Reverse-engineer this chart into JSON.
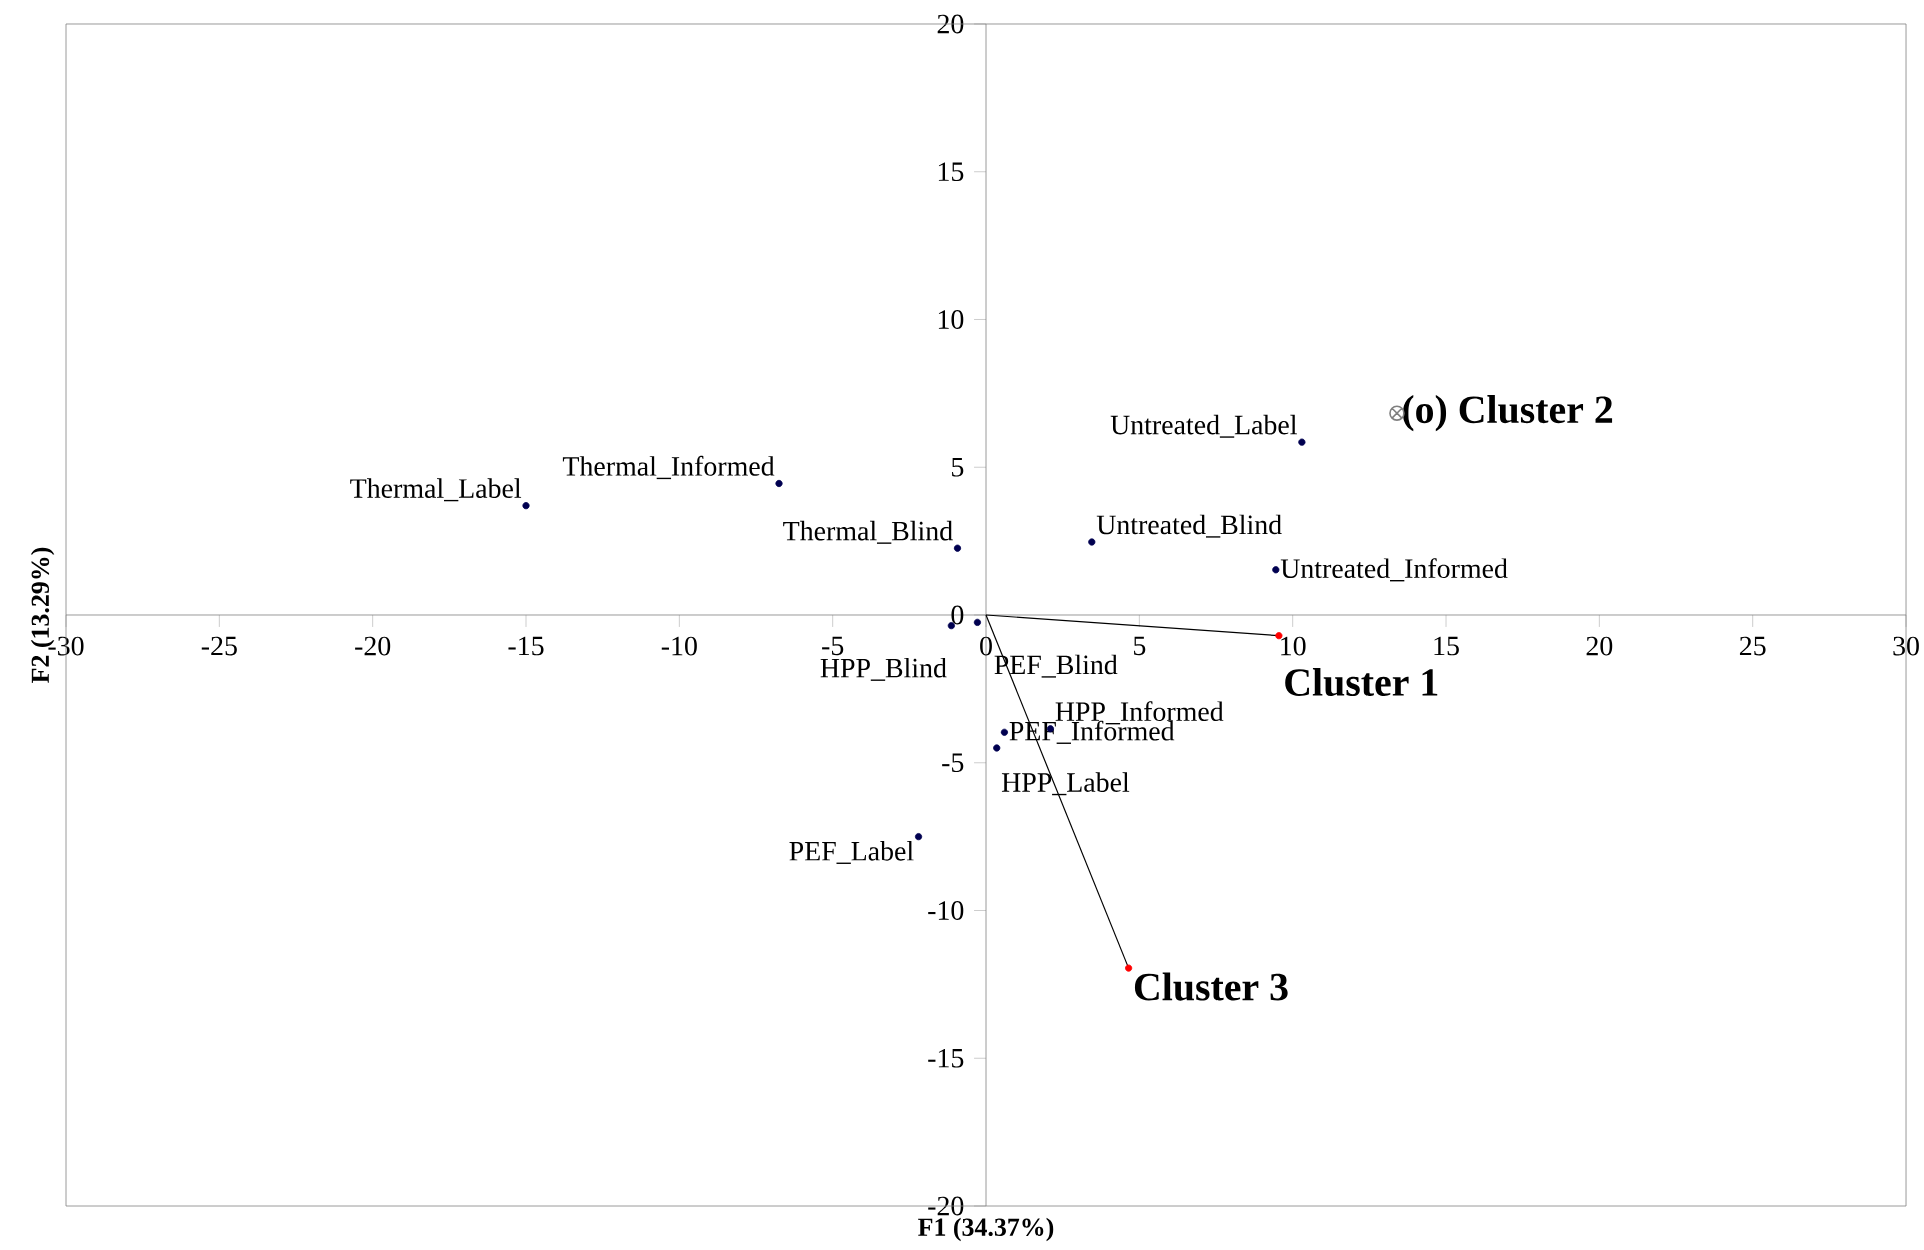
{
  "chart_data": {
    "type": "scatter",
    "xlabel": "F1 (34.37%)",
    "ylabel": "F2 (13.29%)",
    "xlim": [
      -30,
      30
    ],
    "ylim": [
      -20,
      20
    ],
    "xticks": [
      -30,
      -25,
      -20,
      -15,
      -10,
      -5,
      0,
      5,
      10,
      15,
      20,
      25,
      30
    ],
    "yticks": [
      -20,
      -15,
      -10,
      -5,
      0,
      5,
      10,
      15,
      20
    ],
    "grid": false,
    "series": [
      {
        "type": "scatter",
        "color": "#000050",
        "marker": "circle",
        "x": [
          -15.0,
          -6.75,
          -0.93,
          3.45,
          10.3,
          9.45,
          -1.13,
          -0.28,
          2.1,
          0.6,
          0.35,
          -2.2
        ],
        "values": [
          3.7,
          4.45,
          2.26,
          2.47,
          5.85,
          1.53,
          -0.36,
          -0.25,
          -3.85,
          -3.97,
          -4.5,
          -7.5
        ]
      },
      {
        "type": "line",
        "color": "#000000",
        "marker": "none",
        "x": [
          0,
          9.55
        ],
        "values": [
          0,
          -0.7
        ]
      },
      {
        "type": "line",
        "color": "#000000",
        "marker": "none",
        "x": [
          0,
          4.65
        ],
        "values": [
          0,
          -11.95
        ]
      },
      {
        "type": "scatter",
        "color": "#ff0000",
        "marker": "circle",
        "x": [
          9.55,
          4.65
        ],
        "values": [
          -0.7,
          -11.95
        ]
      },
      {
        "type": "scatter",
        "color": "#808080",
        "marker": "cross",
        "x": [
          13.4
        ],
        "values": [
          6.83
        ]
      }
    ],
    "annotations": [
      {
        "text": "Thermal_Label",
        "x": -15.0,
        "y": 3.7
      },
      {
        "text": "Thermal_Informed",
        "x": -6.75,
        "y": 4.45
      },
      {
        "text": "Thermal_Blind",
        "x": -0.93,
        "y": 2.26
      },
      {
        "text": "Untreated_Blind",
        "x": 3.45,
        "y": 2.47
      },
      {
        "text": "Untreated_Label",
        "x": 10.3,
        "y": 5.85
      },
      {
        "text": "Untreated_Informed",
        "x": 9.45,
        "y": 1.53
      },
      {
        "text": "HPP_Blind",
        "x": -1.13,
        "y": -0.36
      },
      {
        "text": "PEF_Blind",
        "x": -0.28,
        "y": -0.25
      },
      {
        "text": "HPP_Informed",
        "x": 2.1,
        "y": -3.85
      },
      {
        "text": "PEF_Informed",
        "x": 0.6,
        "y": -3.97
      },
      {
        "text": "HPP_Label",
        "x": 0.35,
        "y": -4.5
      },
      {
        "text": "PEF_Label",
        "x": -2.2,
        "y": -7.5
      },
      {
        "text": "Cluster 1",
        "x": 9.55,
        "y": -0.7
      },
      {
        "text": "(o) Cluster 2",
        "x": 13.4,
        "y": 6.83
      },
      {
        "text": "Cluster 3",
        "x": 4.65,
        "y": -11.95
      }
    ]
  }
}
